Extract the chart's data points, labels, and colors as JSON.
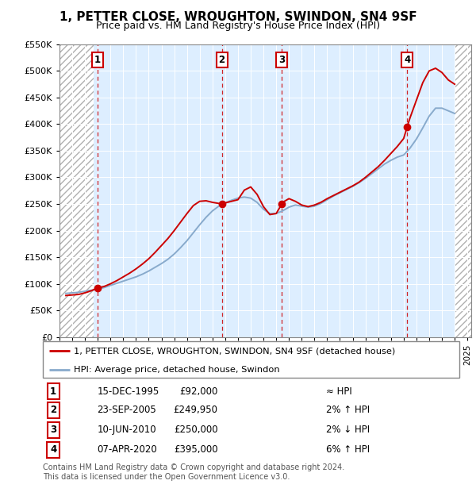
{
  "title": "1, PETTER CLOSE, WROUGHTON, SWINDON, SN4 9SF",
  "subtitle": "Price paid vs. HM Land Registry's House Price Index (HPI)",
  "ylim": [
    0,
    550000
  ],
  "yticks": [
    0,
    50000,
    100000,
    150000,
    200000,
    250000,
    300000,
    350000,
    400000,
    450000,
    500000,
    550000
  ],
  "xlim_start": 1993.0,
  "xlim_end": 2025.3,
  "hatch_left_end": 1995.7,
  "hatch_right_start": 2024.08,
  "sale_dates": [
    1995.96,
    2005.73,
    2010.44,
    2020.27
  ],
  "sale_prices": [
    92000,
    249950,
    250000,
    395000
  ],
  "sale_labels": [
    "1",
    "2",
    "3",
    "4"
  ],
  "hpi_x": [
    1993.5,
    1994.0,
    1994.5,
    1995.0,
    1995.5,
    1996.0,
    1996.5,
    1997.0,
    1997.5,
    1998.0,
    1998.5,
    1999.0,
    1999.5,
    2000.0,
    2000.5,
    2001.0,
    2001.5,
    2002.0,
    2002.5,
    2003.0,
    2003.5,
    2004.0,
    2004.5,
    2005.0,
    2005.5,
    2006.0,
    2006.5,
    2007.0,
    2007.5,
    2008.0,
    2008.5,
    2009.0,
    2009.5,
    2010.0,
    2010.5,
    2011.0,
    2011.5,
    2012.0,
    2012.5,
    2013.0,
    2013.5,
    2014.0,
    2014.5,
    2015.0,
    2015.5,
    2016.0,
    2016.5,
    2017.0,
    2017.5,
    2018.0,
    2018.5,
    2019.0,
    2019.5,
    2020.0,
    2020.5,
    2021.0,
    2021.5,
    2022.0,
    2022.5,
    2023.0,
    2023.5,
    2024.0
  ],
  "hpi_y": [
    82000,
    83000,
    84000,
    86000,
    88000,
    90000,
    93000,
    97000,
    101000,
    105000,
    109000,
    113000,
    118000,
    124000,
    131000,
    138000,
    146000,
    156000,
    168000,
    181000,
    196000,
    211000,
    225000,
    237000,
    246000,
    252000,
    257000,
    261000,
    263000,
    261000,
    253000,
    240000,
    232000,
    232000,
    237000,
    244000,
    248000,
    246000,
    244000,
    246000,
    251000,
    258000,
    265000,
    271000,
    277000,
    283000,
    290000,
    298000,
    307000,
    316000,
    325000,
    332000,
    338000,
    342000,
    355000,
    372000,
    393000,
    415000,
    430000,
    430000,
    425000,
    420000
  ],
  "prop_x": [
    1993.5,
    1994.0,
    1994.5,
    1995.0,
    1995.5,
    1995.96,
    1996.5,
    1997.0,
    1997.5,
    1998.0,
    1998.5,
    1999.0,
    1999.5,
    2000.0,
    2000.5,
    2001.0,
    2001.5,
    2002.0,
    2002.5,
    2003.0,
    2003.5,
    2004.0,
    2004.5,
    2005.0,
    2005.5,
    2005.73,
    2006.0,
    2006.5,
    2007.0,
    2007.5,
    2008.0,
    2008.5,
    2009.0,
    2009.5,
    2010.0,
    2010.44,
    2010.5,
    2011.0,
    2011.5,
    2012.0,
    2012.5,
    2013.0,
    2013.5,
    2014.0,
    2014.5,
    2015.0,
    2015.5,
    2016.0,
    2016.5,
    2017.0,
    2017.5,
    2018.0,
    2018.5,
    2019.0,
    2019.5,
    2020.0,
    2020.27,
    2020.5,
    2021.0,
    2021.5,
    2022.0,
    2022.5,
    2023.0,
    2023.5,
    2024.0
  ],
  "prop_y": [
    78000,
    79000,
    80000,
    83000,
    87000,
    92000,
    95000,
    100000,
    106000,
    113000,
    120000,
    128000,
    137000,
    147000,
    159000,
    172000,
    185000,
    200000,
    216000,
    232000,
    247000,
    255000,
    256000,
    253000,
    251000,
    249950,
    252000,
    255000,
    258000,
    276000,
    282000,
    268000,
    245000,
    230000,
    232000,
    250000,
    253000,
    260000,
    255000,
    248000,
    245000,
    248000,
    253000,
    260000,
    266000,
    272000,
    278000,
    284000,
    291000,
    300000,
    310000,
    320000,
    332000,
    345000,
    358000,
    373000,
    395000,
    412000,
    445000,
    478000,
    500000,
    505000,
    497000,
    483000,
    475000
  ],
  "sale_color": "#cc0000",
  "hpi_color": "#88aacc",
  "line_legend": "1, PETTER CLOSE, WROUGHTON, SWINDON, SN4 9SF (detached house)",
  "hpi_legend": "HPI: Average price, detached house, Swindon",
  "table_rows": [
    [
      "1",
      "15-DEC-1995",
      "£92,000",
      "≈ HPI"
    ],
    [
      "2",
      "23-SEP-2005",
      "£249,950",
      "2% ↑ HPI"
    ],
    [
      "3",
      "10-JUN-2010",
      "£250,000",
      "2% ↓ HPI"
    ],
    [
      "4",
      "07-APR-2020",
      "£395,000",
      "6% ↑ HPI"
    ]
  ],
  "footer": "Contains HM Land Registry data © Crown copyright and database right 2024.\nThis data is licensed under the Open Government Licence v3.0.",
  "background_color": "#ffffff",
  "plot_bg_color": "#ddeeff",
  "grid_color": "#ffffff"
}
